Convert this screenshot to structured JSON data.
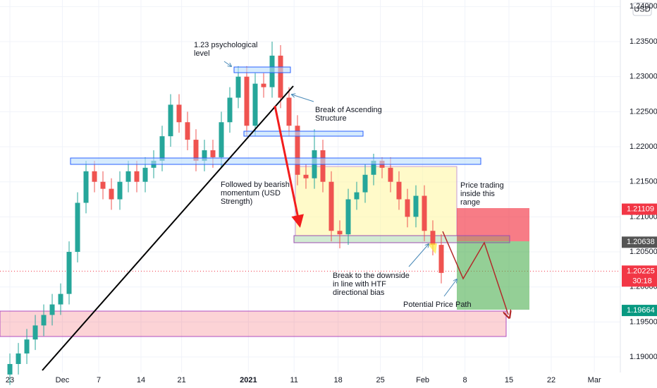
{
  "chart_data": {
    "type": "candlestick",
    "currency": "USD",
    "x": [
      0,
      1,
      2,
      3,
      4,
      5,
      6,
      7,
      8,
      9,
      10,
      11,
      12,
      13,
      14,
      15,
      16,
      17,
      18,
      19,
      20,
      21,
      22,
      23,
      24,
      25,
      26,
      27,
      28,
      29,
      30,
      31,
      32,
      33,
      34,
      35,
      36,
      37,
      38,
      39,
      40,
      41,
      42,
      43,
      44,
      45,
      46,
      47,
      48,
      49,
      50,
      51
    ],
    "open": [
      1.1875,
      1.189,
      1.1905,
      1.1925,
      1.1945,
      1.196,
      1.1975,
      1.199,
      1.205,
      1.212,
      1.2165,
      1.215,
      1.214,
      1.2125,
      1.215,
      1.2165,
      1.215,
      1.217,
      1.218,
      1.2215,
      1.226,
      1.2235,
      1.221,
      1.218,
      1.2195,
      1.2185,
      1.2235,
      1.227,
      1.23,
      1.223,
      1.229,
      1.2285,
      1.233,
      1.227,
      1.223,
      1.216,
      1.2155,
      1.2195,
      1.215,
      1.208,
      1.2075,
      1.2125,
      1.2135,
      1.216,
      1.218,
      1.217,
      1.215,
      1.2125,
      1.21,
      1.213,
      1.208,
      1.206
    ],
    "high": [
      1.1905,
      1.192,
      1.194,
      1.196,
      1.1975,
      1.199,
      1.2005,
      1.2065,
      1.2135,
      1.218,
      1.218,
      1.2165,
      1.2155,
      1.2165,
      1.218,
      1.218,
      1.2185,
      1.2195,
      1.223,
      1.2275,
      1.2275,
      1.225,
      1.2225,
      1.221,
      1.221,
      1.225,
      1.2285,
      1.2315,
      1.2315,
      1.2305,
      1.2305,
      1.235,
      1.2345,
      1.2285,
      1.2245,
      1.2175,
      1.2225,
      1.221,
      1.2165,
      1.2095,
      1.214,
      1.215,
      1.2175,
      1.219,
      1.2185,
      1.2185,
      1.2165,
      1.214,
      1.2145,
      1.2145,
      1.2095,
      1.2075
    ],
    "low": [
      1.186,
      1.1875,
      1.189,
      1.191,
      1.193,
      1.1945,
      1.196,
      1.1975,
      1.2035,
      1.2105,
      1.2135,
      1.2125,
      1.211,
      1.211,
      1.2135,
      1.2135,
      1.2135,
      1.2155,
      1.2165,
      1.22,
      1.222,
      1.2195,
      1.2165,
      1.2165,
      1.217,
      1.217,
      1.222,
      1.2255,
      1.2215,
      1.2215,
      1.227,
      1.227,
      1.2255,
      1.2215,
      1.2145,
      1.214,
      1.214,
      1.2135,
      1.2065,
      1.2055,
      1.206,
      1.211,
      1.212,
      1.2145,
      1.2155,
      1.2135,
      1.211,
      1.2085,
      1.2085,
      1.2065,
      1.2045,
      1.2005
    ],
    "close": [
      1.189,
      1.1905,
      1.1925,
      1.1945,
      1.196,
      1.1975,
      1.199,
      1.205,
      1.212,
      1.2165,
      1.215,
      1.214,
      1.2125,
      1.215,
      1.2165,
      1.215,
      1.217,
      1.218,
      1.2215,
      1.226,
      1.2235,
      1.221,
      1.218,
      1.2195,
      1.2185,
      1.2235,
      1.227,
      1.23,
      1.223,
      1.229,
      1.2285,
      1.233,
      1.227,
      1.223,
      1.216,
      1.2155,
      1.2195,
      1.215,
      1.208,
      1.2075,
      1.2125,
      1.2135,
      1.216,
      1.218,
      1.217,
      1.215,
      1.2125,
      1.21,
      1.213,
      1.208,
      1.206,
      1.202
    ],
    "up_color": "#26a69a",
    "down_color": "#ef5350",
    "xlim": [
      -1.17,
      72.17
    ],
    "xticks": [
      {
        "value": 0,
        "label": "23"
      },
      {
        "value": 6.2,
        "label": "Dec"
      },
      {
        "value": 10.5,
        "label": "7"
      },
      {
        "value": 15.5,
        "label": "14"
      },
      {
        "value": 20.3,
        "label": "21"
      },
      {
        "value": 28.2,
        "label": "2021"
      },
      {
        "value": 33.6,
        "label": "11"
      },
      {
        "value": 38.8,
        "label": "18"
      },
      {
        "value": 43.8,
        "label": "25"
      },
      {
        "value": 48.8,
        "label": "Feb"
      },
      {
        "value": 53.8,
        "label": "8"
      },
      {
        "value": 59,
        "label": "15"
      },
      {
        "value": 64,
        "label": "22"
      },
      {
        "value": 69.1,
        "label": "Mar"
      }
    ],
    "ylim": [
      1.18779,
      1.24094
    ],
    "yticks": [
      {
        "value": 1.19,
        "label": "1.19000"
      },
      {
        "value": 1.195,
        "label": "1.19500"
      },
      {
        "value": 1.2,
        "label": "1.20000"
      },
      {
        "value": 1.205,
        "label": "1.20500"
      },
      {
        "value": 1.21,
        "label": "1.21000"
      },
      {
        "value": 1.215,
        "label": "1.21500"
      },
      {
        "value": 1.22,
        "label": "1.22000"
      },
      {
        "value": 1.225,
        "label": "1.22500"
      },
      {
        "value": 1.23,
        "label": "1.23000"
      },
      {
        "value": 1.235,
        "label": "1.23500"
      },
      {
        "value": 1.24,
        "label": "1.24000"
      }
    ],
    "grid": true,
    "price_labels": [
      {
        "value": 1.21109,
        "label": "1.21109",
        "color": "#f23645"
      },
      {
        "value": 1.20638,
        "label": "1.20638",
        "color": "#555555"
      },
      {
        "value": 1.20225,
        "label": "1.20225",
        "color": "#f23645",
        "countdown": "30:18"
      },
      {
        "value": 1.19664,
        "label": "1.19664",
        "color": "#089981"
      }
    ],
    "annotations": [
      {
        "lines": [
          "1.23 psychological",
          "level"
        ]
      },
      {
        "lines": [
          "Break of Ascending",
          "Structure"
        ]
      },
      {
        "lines": [
          "Followed by bearish",
          "momentum (USD",
          "Strength)"
        ]
      },
      {
        "lines": [
          "Price trading",
          "inside this",
          "range"
        ]
      },
      {
        "lines": [
          "Break to the downside",
          "in line with HTF",
          "directional bias"
        ]
      },
      {
        "lines": [
          "Potential Price Path"
        ]
      }
    ]
  }
}
